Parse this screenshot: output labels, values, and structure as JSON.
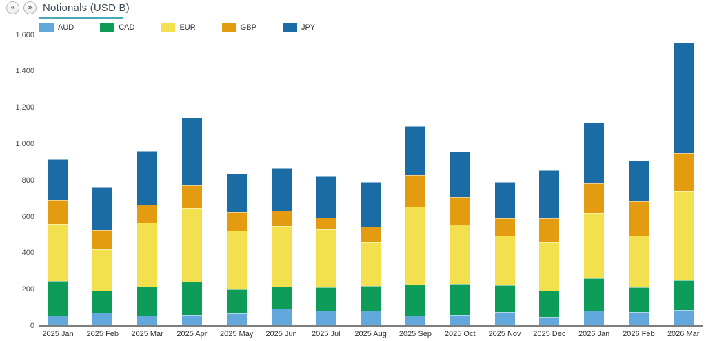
{
  "header": {
    "prev_glyph": "«",
    "next_glyph": "»",
    "tab_label": "Notionals (USD B)"
  },
  "colors": {
    "tab_underline": "#4ba8b8",
    "axis_line": "#7d7d7d",
    "tab_text": "#3e4a54",
    "axis_text": "#4d4d4d"
  },
  "chart_data": {
    "type": "bar",
    "stacked": true,
    "title": "Notionals (USD B)",
    "xlabel": "",
    "ylabel": "",
    "ylim": [
      0,
      1600
    ],
    "ytick_interval": 200,
    "grid": false,
    "legend_position": "top",
    "categories": [
      "2025 Jan",
      "2025 Feb",
      "2025 Mar",
      "2025 Apr",
      "2025 May",
      "2025 Jun",
      "2025 Jul",
      "2025 Aug",
      "2025 Sep",
      "2025 Oct",
      "2025 Nov",
      "2025 Dec",
      "2026 Jan",
      "2026 Feb",
      "2026 Mar"
    ],
    "series": [
      {
        "name": "AUD",
        "color": "#63a8dc",
        "values": [
          56,
          72,
          56,
          60,
          70,
          94,
          82,
          82,
          58,
          60,
          76,
          50,
          85,
          75,
          88
        ]
      },
      {
        "name": "CAD",
        "color": "#0e9d58",
        "values": [
          189,
          120,
          161,
          182,
          131,
          123,
          131,
          138,
          168,
          170,
          148,
          142,
          176,
          136,
          163
        ]
      },
      {
        "name": "EUR",
        "color": "#f2e04e",
        "values": [
          316,
          230,
          350,
          405,
          322,
          331,
          316,
          237,
          430,
          328,
          271,
          265,
          360,
          284,
          493
        ]
      },
      {
        "name": "GBP",
        "color": "#e39b10",
        "values": [
          127,
          105,
          101,
          126,
          101,
          84,
          67,
          89,
          174,
          149,
          95,
          133,
          165,
          190,
          206
        ]
      },
      {
        "name": "JPY",
        "color": "#1b6ba5",
        "values": [
          230,
          233,
          294,
          373,
          215,
          236,
          227,
          246,
          268,
          253,
          202,
          265,
          331,
          223,
          606
        ]
      }
    ],
    "totals": [
      918,
      760,
      962,
      1146,
      839,
      868,
      823,
      792,
      1098,
      960,
      792,
      855,
      1117,
      908,
      1556
    ]
  }
}
